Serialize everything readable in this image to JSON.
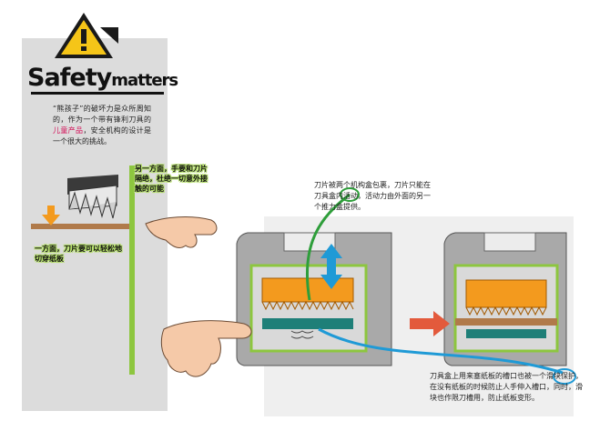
{
  "header": {
    "title_main": "Safety",
    "title_sub": "matters"
  },
  "intro": {
    "before": "“熊孩子”的破坏力是众所周知的，作为一个带有锋利刀具的",
    "highlight": "儿童产品",
    "after": "，安全机构的设计是一个很大的挑战。"
  },
  "callouts": {
    "fingers": "另一方面，手要和刀片隔绝，杜绝一切意外接触的可能",
    "paper": "一方面，刀片要可以轻松地切穿纸板"
  },
  "notes": {
    "blade_box": "刀片被两个机构盒包裹，刀片只能在刀具盒内活动，活动力由外面的另一个推力盒提供。",
    "slot": "刀具盒上用来塞纸板的槽口也被一个滑块保护，在没有纸板的时候防止人手伸入槽口，同时，滑块也作限刀槽用，防止纸板变形。"
  },
  "icons": [
    "warning-icon",
    "up-down-arrow-icon",
    "right-arrow-icon",
    "down-arrow-icon"
  ],
  "colors": {
    "accent_green": "#8dc63f",
    "blade_orange": "#f39a1e",
    "slider_teal": "#1e7f78",
    "arrow_blue": "#1f9ad6",
    "arrow_red": "#e35a3c",
    "housing_gray": "#a9a9a9",
    "warning_yellow": "#f5c518"
  }
}
